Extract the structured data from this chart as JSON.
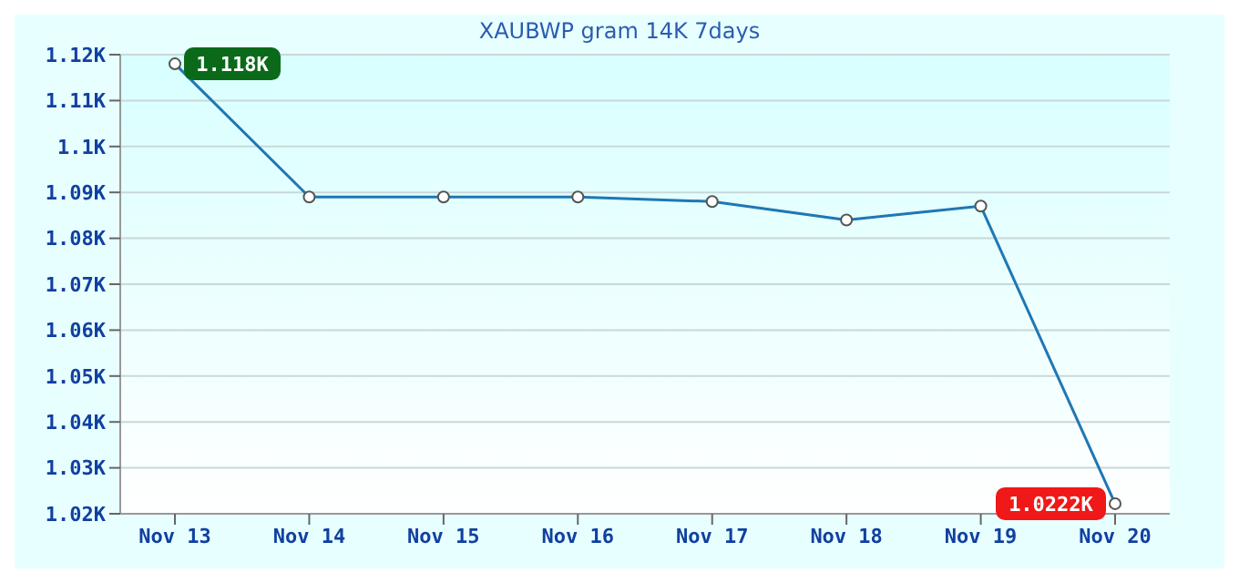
{
  "chart_data": {
    "type": "line",
    "title": "XAUBWP gram 14K 7days",
    "categories": [
      "Nov 13",
      "Nov 14",
      "Nov 15",
      "Nov 16",
      "Nov 17",
      "Nov 18",
      "Nov 19",
      "Nov 20"
    ],
    "series": [
      {
        "color": "#1f77b4",
        "values": [
          1.118,
          1.089,
          1.089,
          1.089,
          1.088,
          1.084,
          1.087,
          1.0222
        ],
        "value_labels": [
          "1.118K",
          null,
          null,
          null,
          null,
          null,
          null,
          "1.0222K"
        ]
      }
    ],
    "ylim": [
      1.02,
      1.12
    ],
    "yticks": [
      {
        "value": 1.02,
        "label": "1.02K"
      },
      {
        "value": 1.03,
        "label": "1.03K"
      },
      {
        "value": 1.04,
        "label": "1.04K"
      },
      {
        "value": 1.05,
        "label": "1.05K"
      },
      {
        "value": 1.06,
        "label": "1.06K"
      },
      {
        "value": 1.07,
        "label": "1.07K"
      },
      {
        "value": 1.08,
        "label": "1.08K"
      },
      {
        "value": 1.09,
        "label": "1.09K"
      },
      {
        "value": 1.1,
        "label": "1.1K"
      },
      {
        "value": 1.11,
        "label": "1.11K"
      },
      {
        "value": 1.12,
        "label": "1.12K"
      }
    ],
    "grid": "y",
    "marker": "circle",
    "line_style": "solid",
    "legend": false
  }
}
